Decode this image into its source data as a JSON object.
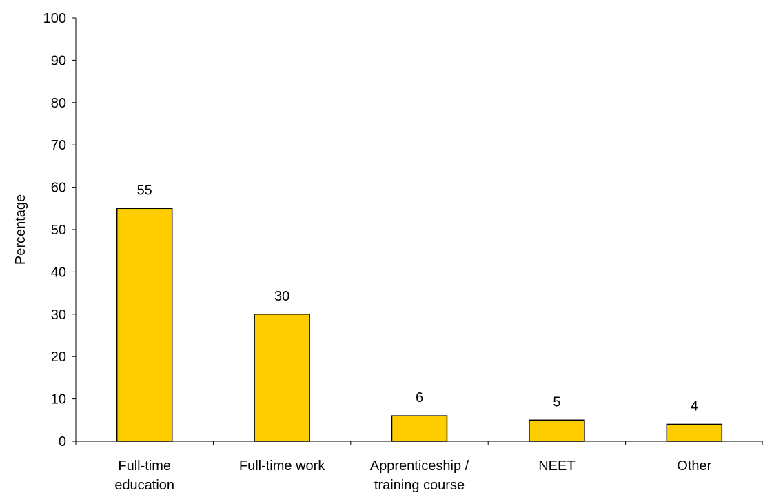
{
  "chart_data": {
    "type": "bar",
    "title": "",
    "xlabel": "",
    "ylabel": "Percentage",
    "categories": [
      [
        "Full-time",
        "education"
      ],
      [
        "Full-time work"
      ],
      [
        "Apprenticeship /",
        "training course"
      ],
      [
        "NEET"
      ],
      [
        "Other"
      ]
    ],
    "values": [
      55,
      30,
      6,
      5,
      4
    ],
    "data_labels": [
      "55",
      "30",
      "6",
      "5",
      "4"
    ],
    "ylim": [
      0,
      100
    ],
    "yticks": [
      0,
      10,
      20,
      30,
      40,
      50,
      60,
      70,
      80,
      90,
      100
    ],
    "ytick_labels": [
      "0",
      "10",
      "20",
      "30",
      "40",
      "50",
      "60",
      "70",
      "80",
      "90",
      "100"
    ],
    "grid": false,
    "legend": "none",
    "colors": {
      "bar_fill": "#FFCC00",
      "bar_stroke": "#000000",
      "axis": "#000000"
    }
  }
}
